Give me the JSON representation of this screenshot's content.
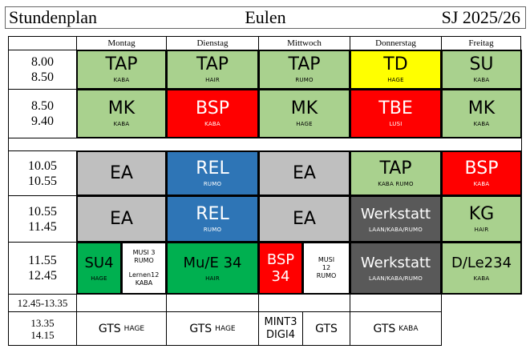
{
  "header": {
    "left": "Stundenplan",
    "center": "Eulen",
    "right": "SJ 2025/26"
  },
  "days": [
    "Montag",
    "Dienstag",
    "Mittwoch",
    "Donnerstag",
    "Freitag"
  ],
  "times": [
    {
      "a": "8.00",
      "b": "8.50"
    },
    {
      "a": "8.50",
      "b": "9.40"
    },
    {
      "a": "10.05",
      "b": "10.55"
    },
    {
      "a": "10.55",
      "b": "11.45"
    },
    {
      "a": "11.55",
      "b": "12.45"
    },
    {
      "a": "12.45-13.35",
      "b": ""
    },
    {
      "a": "13.35",
      "b": "14.15"
    }
  ],
  "row1": [
    {
      "main": "TAP",
      "sub": "KABA"
    },
    {
      "main": "TAP",
      "sub": "HAIR"
    },
    {
      "main": "TAP",
      "sub": "RUMO"
    },
    {
      "main": "TD",
      "sub": "HAGE"
    },
    {
      "main": "SU",
      "sub": "KABA"
    }
  ],
  "row2": [
    {
      "main": "MK",
      "sub": "KABA"
    },
    {
      "main": "BSP",
      "sub": "KABA"
    },
    {
      "main": "MK",
      "sub": "HAGE"
    },
    {
      "main": "TBE",
      "sub": "LUSI"
    },
    {
      "main": "MK",
      "sub": "KABA"
    }
  ],
  "row3": [
    {
      "main": "EA",
      "sub": ""
    },
    {
      "main": "REL",
      "sub": "RUMO"
    },
    {
      "main": "EA",
      "sub": ""
    },
    {
      "main": "TAP",
      "sub": "KABA RUMO"
    },
    {
      "main": "BSP",
      "sub": "KABA"
    }
  ],
  "row4": [
    {
      "main": "EA",
      "sub": ""
    },
    {
      "main": "REL",
      "sub": "RUMO"
    },
    {
      "main": "EA",
      "sub": ""
    },
    {
      "main": "Werkstatt",
      "sub": "LAAN/KABA/RUMO"
    },
    {
      "main": "KG",
      "sub": "HAIR"
    }
  ],
  "row5": {
    "mon_a": {
      "main": "SU4",
      "sub": "HAGE"
    },
    "mon_b": {
      "l1": "MUSI 3",
      "l2": "RUMO",
      "l3": "Lernen12",
      "l4": "KABA"
    },
    "tue": {
      "main": "Mu/E 34",
      "sub": "HAIR"
    },
    "wed_a": {
      "l1": "BSP",
      "l2": "34"
    },
    "wed_b": {
      "l1": "MUSI",
      "l2": "12",
      "l3": "RUMO"
    },
    "thu": {
      "main": "Werkstatt",
      "sub": "LAAN/KABA/RUMO"
    },
    "fri": {
      "main": "D/Le234",
      "sub": "KABA"
    }
  },
  "row7": {
    "mon": {
      "main": "GTS",
      "sub": "HAGE"
    },
    "tue": {
      "main": "GTS",
      "sub": "HAGE"
    },
    "wed_a": {
      "l1": "MINT3",
      "l2": "DIGI4"
    },
    "wed_b": {
      "main": "GTS"
    },
    "thu": {
      "main": "GTS",
      "sub": "KABA"
    }
  }
}
